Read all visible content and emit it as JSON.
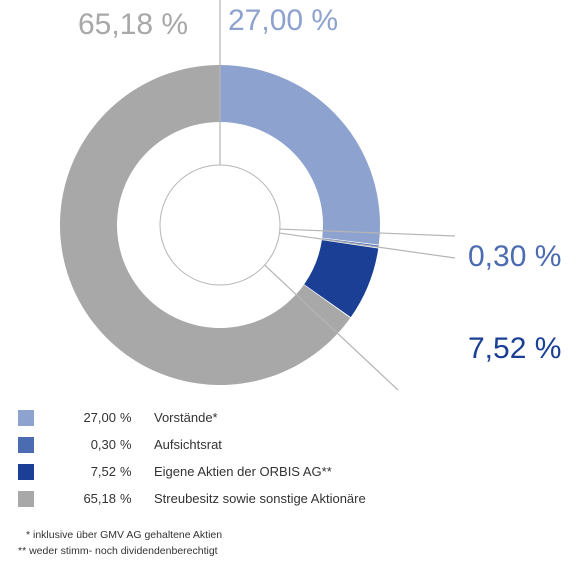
{
  "chart_data": {
    "type": "donut",
    "series": [
      {
        "name": "Vorstände*",
        "value": 27.0,
        "value_label": "27,00",
        "color": "#8ea2cf",
        "callout_color": "#8ea2cf"
      },
      {
        "name": "Aufsichtsrat",
        "value": 0.3,
        "value_label": "0,30",
        "color": "#4b6cb0",
        "callout_color": "#4b6cb0"
      },
      {
        "name": "Eigene Aktien der ORBIS AG**",
        "value": 7.52,
        "value_label": "7,52",
        "color": "#1a3f94",
        "callout_color": "#1a3f94"
      },
      {
        "name": "Streubesitz sowie sonstige Aktionäre",
        "value": 65.18,
        "value_label": "65,18",
        "color": "#a8a8a8",
        "callout_color": "#a8a8a8"
      }
    ],
    "unit": "%",
    "callouts": [
      "27,00 %",
      "0,30 %",
      "7,52 %",
      "65,18 %"
    ]
  },
  "footnotes": [
    "* inklusive über GMV AG gehaltene Aktien",
    "** weder stimm- noch dividendenberechtigt"
  ]
}
